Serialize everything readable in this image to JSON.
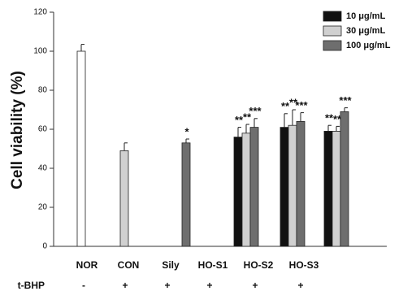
{
  "chart_data": {
    "type": "bar",
    "ylabel": "Cell viability (%)",
    "categories": [
      "NOR",
      "CON",
      "Sily",
      "HO-S1",
      "HO-S2",
      "HO-S3"
    ],
    "row_label": "t-BHP",
    "row_values": [
      "-",
      "+",
      "+",
      "+",
      "+",
      "+"
    ],
    "ylim": [
      0,
      120
    ],
    "yticks": [
      0,
      20,
      40,
      60,
      80,
      100,
      120
    ],
    "extra_series": [
      {
        "color": "#ffffff",
        "values": [
          100,
          null,
          null,
          null,
          null,
          null
        ],
        "errors": [
          3.5,
          null,
          null,
          null,
          null,
          null
        ]
      }
    ],
    "series": [
      {
        "name": "10 μg/mL",
        "color": "#111111",
        "values": [
          null,
          null,
          null,
          56,
          61,
          59
        ],
        "errors": [
          null,
          null,
          null,
          5,
          7,
          3
        ],
        "significance": [
          null,
          null,
          null,
          "**",
          "**",
          "**"
        ]
      },
      {
        "name": "30 μg/mL",
        "color": "#d0d0d0",
        "values": [
          null,
          49,
          null,
          58,
          62,
          59
        ],
        "errors": [
          null,
          4,
          null,
          4.5,
          8,
          2.5
        ],
        "significance": [
          null,
          null,
          null,
          "**",
          "**",
          "**"
        ]
      },
      {
        "name": "100 μg/mL",
        "color": "#6e6e6e",
        "values": [
          null,
          null,
          53,
          61,
          64,
          69
        ],
        "errors": [
          null,
          null,
          2,
          4.5,
          4.5,
          2
        ],
        "significance": [
          null,
          null,
          "*",
          "***",
          "***",
          "***"
        ]
      }
    ],
    "legend": "upper right"
  }
}
